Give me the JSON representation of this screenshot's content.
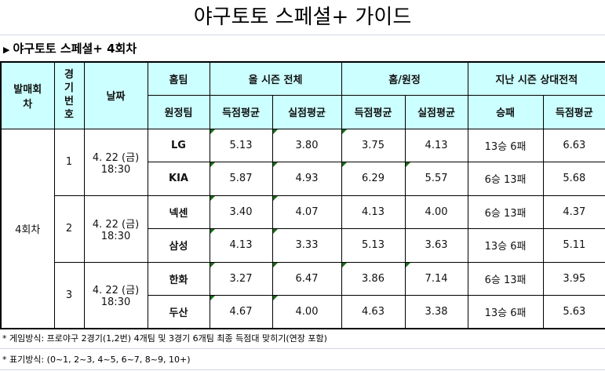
{
  "title": "야구토토 스페셜+ 가이드",
  "subtitle": "야구토토 스페셜+ 4회차",
  "headers": {
    "round": "발매회차",
    "game_no": "경기번호",
    "date": "날짜",
    "home": "홈팀",
    "away": "원정팀",
    "season": "올 시즌 전체",
    "homeaway": "홈/원정",
    "last": "지난 시즌 상대전적",
    "score_avg": "득점평균",
    "allowed_avg": "실점평균",
    "record": "승패"
  },
  "round": "4회차",
  "games": [
    {
      "no": "1",
      "date": "4. 22 (금)",
      "time": "18:30",
      "rows": [
        {
          "team": "LG",
          "s_score": "5.13",
          "s_allow": "3.80",
          "h_score": "3.75",
          "h_allow": "4.13",
          "record": "13승 6패",
          "l_score": "6.63",
          "flags": [
            1,
            1,
            1,
            0
          ]
        },
        {
          "team": "KIA",
          "s_score": "5.87",
          "s_allow": "4.93",
          "h_score": "6.29",
          "h_allow": "5.57",
          "record": "6승 13패",
          "l_score": "5.68",
          "flags": [
            1,
            1,
            1,
            1
          ]
        }
      ]
    },
    {
      "no": "2",
      "date": "4. 22 (금)",
      "time": "18:30",
      "rows": [
        {
          "team": "넥센",
          "s_score": "3.40",
          "s_allow": "4.07",
          "h_score": "4.13",
          "h_allow": "4.00",
          "record": "6승 13패",
          "l_score": "4.37",
          "flags": [
            1,
            1,
            0,
            0
          ]
        },
        {
          "team": "삼성",
          "s_score": "4.13",
          "s_allow": "3.33",
          "h_score": "5.13",
          "h_allow": "3.63",
          "record": "13승 6패",
          "l_score": "5.11",
          "flags": [
            1,
            1,
            0,
            0
          ]
        }
      ]
    },
    {
      "no": "3",
      "date": "4. 22 (금)",
      "time": "18:30",
      "rows": [
        {
          "team": "한화",
          "s_score": "3.27",
          "s_allow": "6.47",
          "h_score": "3.86",
          "h_allow": "7.14",
          "record": "6승 13패",
          "l_score": "3.95",
          "flags": [
            1,
            1,
            1,
            1
          ]
        },
        {
          "team": "두산",
          "s_score": "4.67",
          "s_allow": "4.00",
          "h_score": "4.63",
          "h_allow": "3.38",
          "record": "13승 6패",
          "l_score": "5.63",
          "flags": [
            1,
            1,
            0,
            0
          ]
        }
      ]
    }
  ],
  "notes": [
    "* 게임방식: 프로야구 2경기(1,2번) 4개팀 및 3경기 6개팀 최종 득점대 맞히기(연장 포함)",
    "* 표기방식: (0~1, 2~3, 4~5, 6~7, 8~9, 10+)"
  ]
}
